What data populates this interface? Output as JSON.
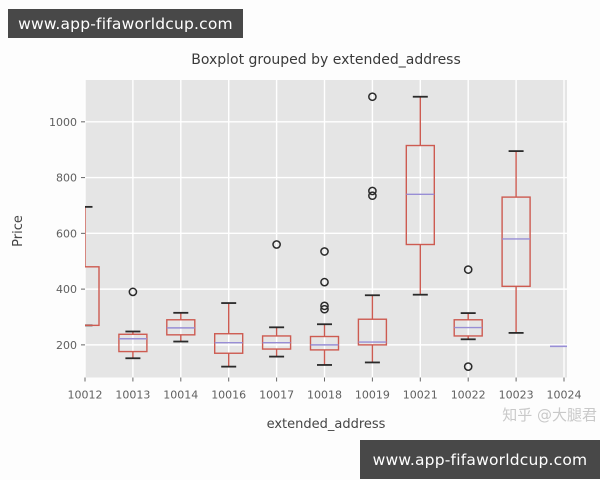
{
  "banners": {
    "top": "www.app-fifaworldcup.com",
    "bottom": "www.app-fifaworldcup.com"
  },
  "watermark": "知乎 @大腿君",
  "chart_data": {
    "type": "boxplot",
    "title": "Boxplot grouped by extended_address",
    "xlabel": "extended_address",
    "ylabel": "Price",
    "ylim": [
      83,
      1150
    ],
    "yticks": [
      200,
      400,
      600,
      800,
      1000
    ],
    "grid": true,
    "categories": [
      "10012",
      "10013",
      "10014",
      "10016",
      "10017",
      "10018",
      "10019",
      "10021",
      "10022",
      "10023",
      "10024"
    ],
    "boxes": [
      {
        "category": "10012",
        "q1": 270,
        "median": null,
        "q3": 480,
        "whisker_low": 270,
        "whisker_high": 695,
        "fliers": [],
        "clipped_left": true
      },
      {
        "category": "10013",
        "q1": 176,
        "median": 222,
        "q3": 238,
        "whisker_low": 152,
        "whisker_high": 248,
        "fliers": [
          390
        ]
      },
      {
        "category": "10014",
        "q1": 236,
        "median": 261,
        "q3": 290,
        "whisker_low": 212,
        "whisker_high": 315,
        "fliers": []
      },
      {
        "category": "10016",
        "q1": 170,
        "median": 208,
        "q3": 240,
        "whisker_low": 122,
        "whisker_high": 350,
        "fliers": []
      },
      {
        "category": "10017",
        "q1": 185,
        "median": 208,
        "q3": 232,
        "whisker_low": 158,
        "whisker_high": 263,
        "fliers": [
          560
        ]
      },
      {
        "category": "10018",
        "q1": 182,
        "median": 200,
        "q3": 230,
        "whisker_low": 128,
        "whisker_high": 274,
        "fliers": [
          328,
          340,
          425,
          535
        ]
      },
      {
        "category": "10019",
        "q1": 200,
        "median": 210,
        "q3": 292,
        "whisker_low": 137,
        "whisker_high": 378,
        "fliers": [
          735,
          752,
          1090
        ]
      },
      {
        "category": "10021",
        "q1": 560,
        "median": 740,
        "q3": 915,
        "whisker_low": 380,
        "whisker_high": 1090,
        "fliers": []
      },
      {
        "category": "10022",
        "q1": 232,
        "median": 262,
        "q3": 290,
        "whisker_low": 220,
        "whisker_high": 314,
        "fliers": [
          122,
          470
        ]
      },
      {
        "category": "10023",
        "q1": 410,
        "median": 580,
        "q3": 730,
        "whisker_low": 243,
        "whisker_high": 895,
        "fliers": []
      },
      {
        "category": "10024",
        "q1": null,
        "median": 195,
        "q3": null,
        "whisker_low": null,
        "whisker_high": null,
        "fliers": []
      }
    ],
    "colors": {
      "box": "#cd5b51",
      "median": "#988ed5",
      "cap": "#2a2a2a",
      "flier": "#2a2a2a",
      "plot_bg": "#e5e5e5",
      "grid": "#ffffff",
      "tick_label": "#606060",
      "title_text": "#3a3a3a",
      "axis_label": "#454545",
      "banner_bg": "#484848"
    }
  }
}
